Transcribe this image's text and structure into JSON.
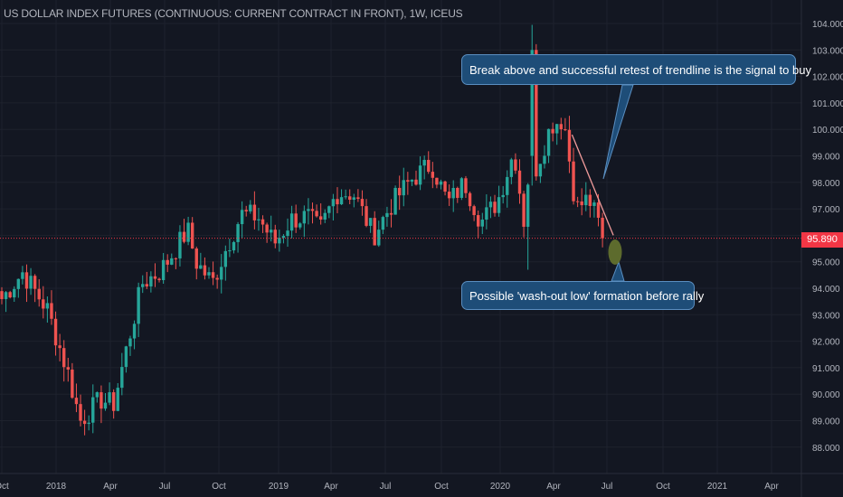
{
  "chart_title": "US DOLLAR INDEX FUTURES (CONTINUOUS: CURRENT CONTRACT IN FRONT), 1W, ICEUS",
  "colors": {
    "background": "#131722",
    "grid": "#1e222d",
    "up": "#26a69a",
    "down": "#ef5350",
    "last_price_line": "#f23645",
    "callout_bg": "#1e4d78",
    "trendline": "#ef9a9a",
    "washout_marker": "#6b7a2f"
  },
  "annotations": {
    "top": "Break above and successful retest of trendline is the signal to buy",
    "bottom": "Possible 'wash-out low' formation before rally"
  },
  "last_price_label": "95.890",
  "chart_data": {
    "type": "candlestick",
    "timeframe": "1W",
    "y_axis": {
      "ticks": [
        "104.000",
        "103.000",
        "102.000",
        "101.000",
        "100.000",
        "99.000",
        "98.000",
        "97.000",
        "96.000",
        "95.000",
        "94.000",
        "93.000",
        "92.000",
        "91.000",
        "90.000",
        "89.000",
        "88.000"
      ],
      "ylim": [
        87.5,
        104.2
      ]
    },
    "x_axis": {
      "ticks": [
        "Oct",
        "2018",
        "Apr",
        "Jul",
        "Oct",
        "2019",
        "Apr",
        "Jul",
        "Oct",
        "2020",
        "Apr",
        "Jul",
        "Oct",
        "2021",
        "Apr"
      ]
    },
    "last_price": 95.89,
    "close_path": [
      {
        "date": "2017-10-01",
        "close": 93.6
      },
      {
        "date": "2017-11-05",
        "close": 94.6
      },
      {
        "date": "2017-12-17",
        "close": 93.2
      },
      {
        "date": "2018-01-21",
        "close": 90.8
      },
      {
        "date": "2018-02-11",
        "close": 89.0
      },
      {
        "date": "2018-03-18",
        "close": 89.8
      },
      {
        "date": "2018-04-08",
        "close": 89.6
      },
      {
        "date": "2018-04-29",
        "close": 91.6
      },
      {
        "date": "2018-05-27",
        "close": 94.2
      },
      {
        "date": "2018-06-24",
        "close": 94.6
      },
      {
        "date": "2018-07-08",
        "close": 95.0
      },
      {
        "date": "2018-08-12",
        "close": 96.2
      },
      {
        "date": "2018-08-26",
        "close": 95.0
      },
      {
        "date": "2018-09-23",
        "close": 94.2
      },
      {
        "date": "2018-10-14",
        "close": 95.4
      },
      {
        "date": "2018-11-11",
        "close": 96.8
      },
      {
        "date": "2018-12-09",
        "close": 96.7
      },
      {
        "date": "2019-01-06",
        "close": 95.7
      },
      {
        "date": "2019-02-03",
        "close": 96.6
      },
      {
        "date": "2019-03-03",
        "close": 96.7
      },
      {
        "date": "2019-03-24",
        "close": 96.2
      },
      {
        "date": "2019-04-21",
        "close": 97.6
      },
      {
        "date": "2019-05-19",
        "close": 97.6
      },
      {
        "date": "2019-06-23",
        "close": 96.0
      },
      {
        "date": "2019-07-21",
        "close": 97.1
      },
      {
        "date": "2019-08-25",
        "close": 98.1
      },
      {
        "date": "2019-09-29",
        "close": 98.7
      },
      {
        "date": "2019-10-27",
        "close": 97.2
      },
      {
        "date": "2019-11-24",
        "close": 98.0
      },
      {
        "date": "2019-12-22",
        "close": 96.5
      },
      {
        "date": "2020-01-19",
        "close": 97.3
      },
      {
        "date": "2020-02-16",
        "close": 99.2
      },
      {
        "date": "2020-03-08",
        "close": 95.8
      },
      {
        "date": "2020-03-15",
        "close": 102.8
      },
      {
        "date": "2020-03-22",
        "close": 98.4
      },
      {
        "date": "2020-04-19",
        "close": 100.2
      },
      {
        "date": "2020-05-10",
        "close": 100.4
      },
      {
        "date": "2020-05-31",
        "close": 97.0
      },
      {
        "date": "2020-06-21",
        "close": 97.4
      },
      {
        "date": "2020-07-05",
        "close": 96.6
      },
      {
        "date": "2020-07-19",
        "close": 95.89
      }
    ],
    "notable_points": {
      "high": {
        "date": "2020-03-15",
        "value": 103.95
      },
      "march_2020_low": {
        "date": "2020-03-08",
        "value": 94.7
      },
      "feb_2018_low": {
        "date": "2018-02-11",
        "value": 88.2
      }
    },
    "trendline": {
      "from": {
        "date": "2020-05-24",
        "value": 99.8
      },
      "to": {
        "date": "2020-08-02",
        "value": 96.0
      }
    }
  }
}
